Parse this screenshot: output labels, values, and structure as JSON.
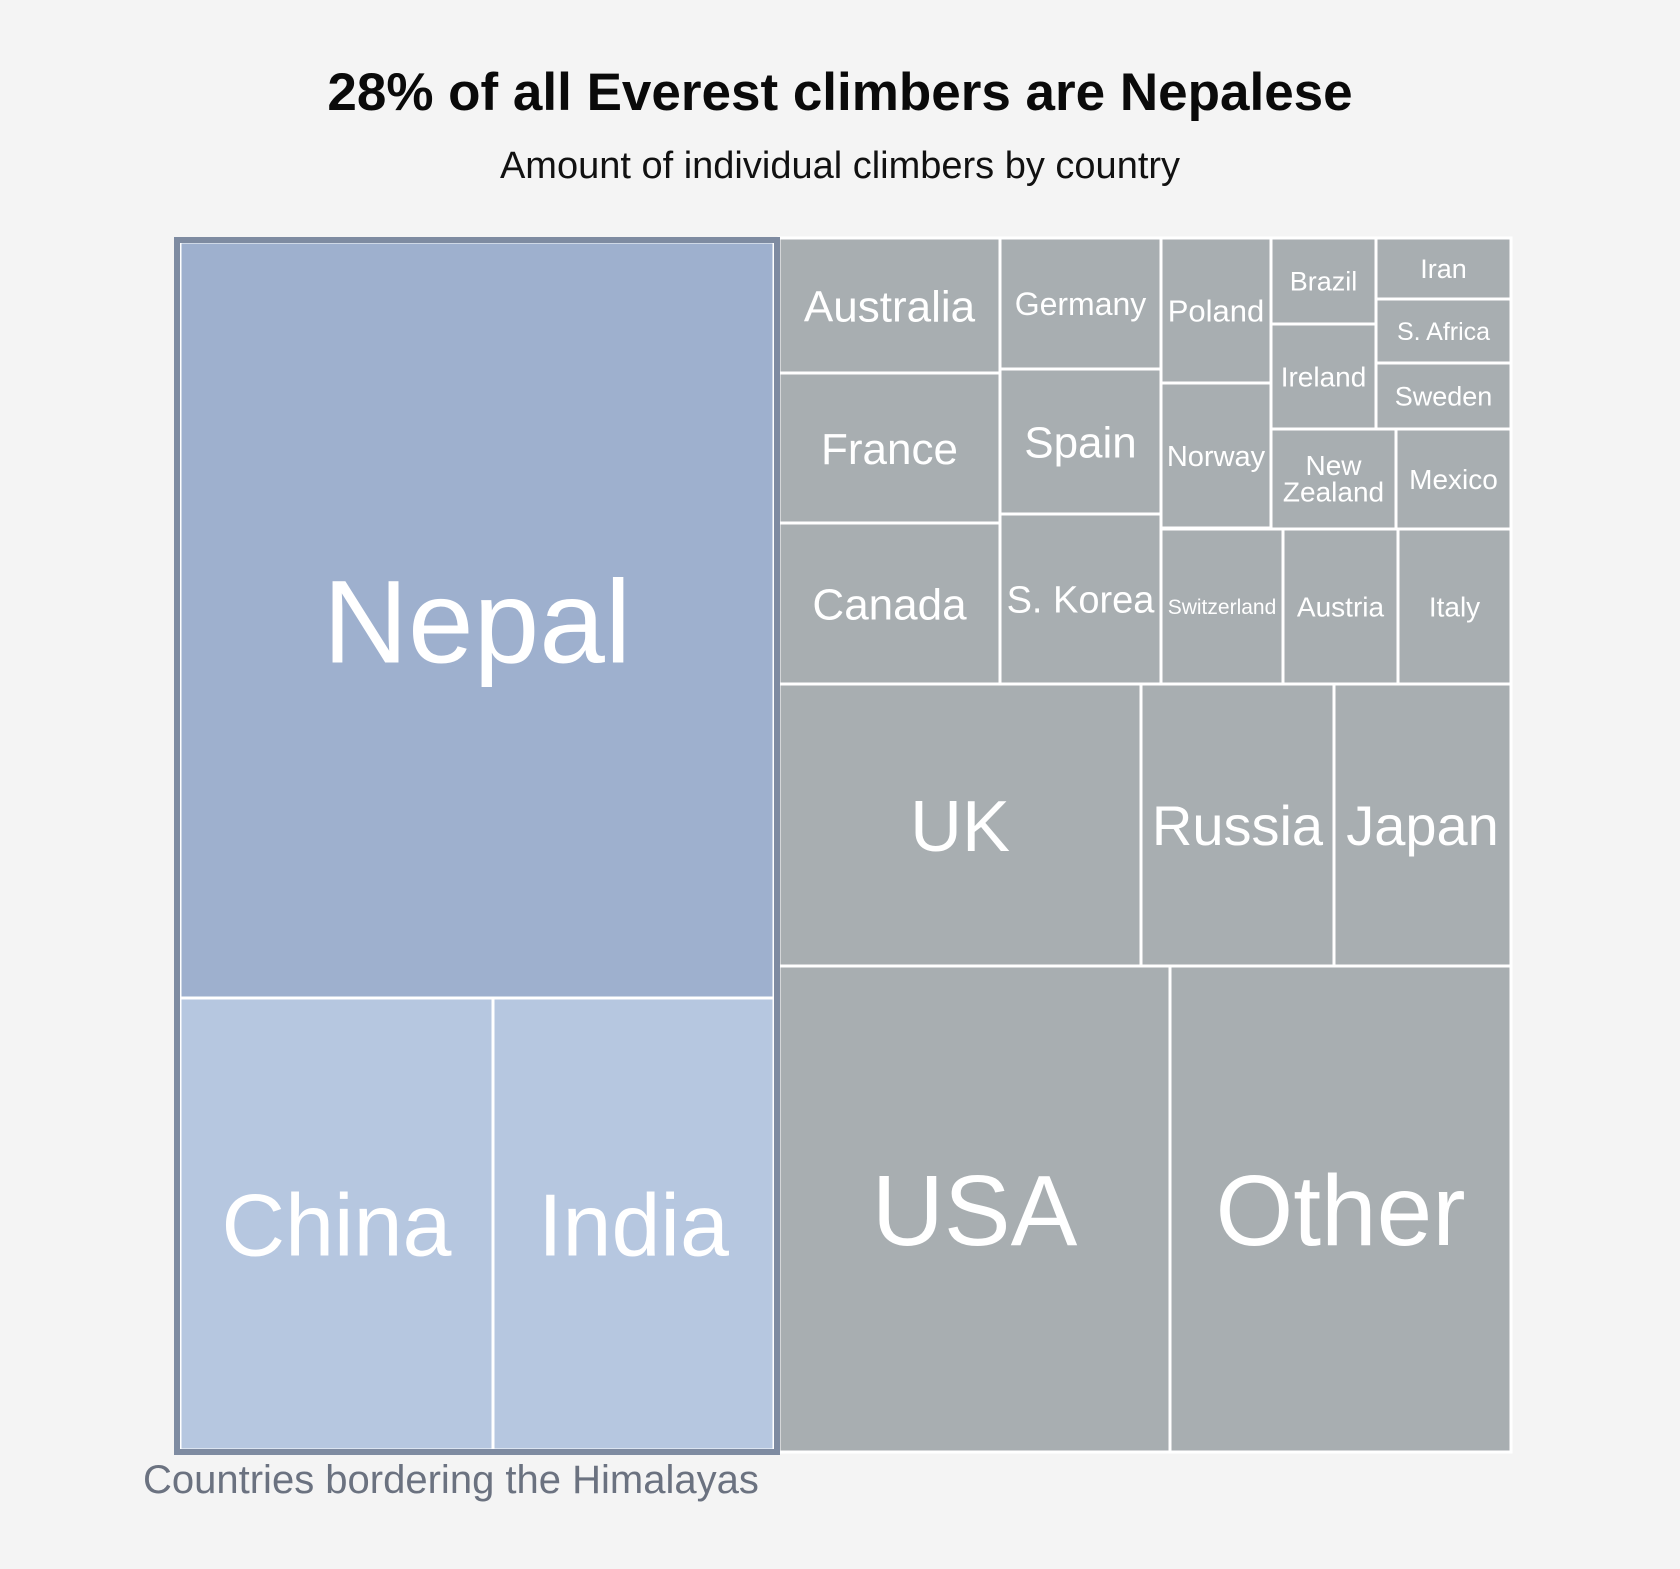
{
  "title": "28% of all Everest climbers are Nepalese",
  "subtitle": "Amount of individual climbers by country",
  "chart_data": {
    "type": "treemap",
    "title": "28% of all Everest climbers are Nepalese",
    "subtitle": "Amount of individual climbers by country",
    "group_annotation": "Countries bordering the Himalayas",
    "colors": {
      "Nepal": "#9eb0ce",
      "China": "#b6c7e0",
      "India": "#b6c7e0",
      "other": "#a8aeb1",
      "group_border": "#7e8ba1",
      "divider": "#ffffff"
    },
    "countries": [
      {
        "name": "Nepal",
        "share": 28.0,
        "group": "Countries bordering the Himalayas"
      },
      {
        "name": "China",
        "share": 6.6,
        "group": "Countries bordering the Himalayas"
      },
      {
        "name": "India",
        "share": 5.9,
        "group": "Countries bordering the Himalayas"
      },
      {
        "name": "USA",
        "share": 6.9
      },
      {
        "name": "Other",
        "share": 6.5
      },
      {
        "name": "UK",
        "share": 4.0
      },
      {
        "name": "Russia",
        "share": 2.1
      },
      {
        "name": "Japan",
        "share": 2.0
      },
      {
        "name": "Australia",
        "share": 1.5
      },
      {
        "name": "France",
        "share": 1.6
      },
      {
        "name": "Canada",
        "share": 1.7
      },
      {
        "name": "Germany",
        "share": 1.0
      },
      {
        "name": "Spain",
        "share": 1.1
      },
      {
        "name": "S. Korea",
        "share": 1.3
      },
      {
        "name": "Poland",
        "share": 0.7
      },
      {
        "name": "Norway",
        "share": 0.7
      },
      {
        "name": "Brazil",
        "share": 0.4
      },
      {
        "name": "Ireland",
        "share": 0.5
      },
      {
        "name": "Iran",
        "share": 0.3
      },
      {
        "name": "S. Africa",
        "share": 0.3
      },
      {
        "name": "Sweden",
        "share": 0.3
      },
      {
        "name": "New Zealand",
        "share": 0.5
      },
      {
        "name": "Mexico",
        "share": 0.5
      },
      {
        "name": "Switzerland",
        "share": 0.9
      },
      {
        "name": "Austria",
        "share": 0.8
      },
      {
        "name": "Italy",
        "share": 0.8
      }
    ]
  }
}
